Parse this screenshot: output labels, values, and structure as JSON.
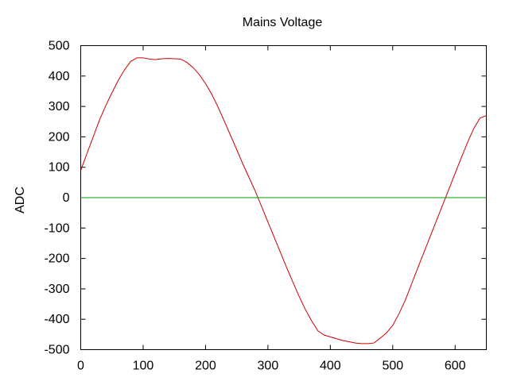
{
  "chart_data": {
    "type": "line",
    "title": "Mains Voltage",
    "xlabel": "",
    "ylabel": "ADC",
    "xlim": [
      0,
      650
    ],
    "ylim": [
      -500,
      500
    ],
    "x_ticks": [
      0,
      100,
      200,
      300,
      400,
      500,
      600
    ],
    "y_ticks": [
      500,
      400,
      300,
      200,
      100,
      0,
      -100,
      -200,
      -300,
      -400,
      -500
    ],
    "grid": false,
    "legend": "none",
    "series": [
      {
        "color": "#cc0000",
        "x": [
          0,
          10,
          20,
          30,
          40,
          50,
          60,
          70,
          80,
          90,
          100,
          110,
          120,
          130,
          140,
          150,
          160,
          170,
          180,
          190,
          200,
          210,
          220,
          230,
          240,
          250,
          260,
          270,
          280,
          290,
          300,
          310,
          320,
          330,
          340,
          350,
          360,
          370,
          380,
          390,
          400,
          410,
          420,
          430,
          440,
          450,
          460,
          470,
          480,
          490,
          500,
          510,
          520,
          530,
          540,
          550,
          560,
          570,
          580,
          590,
          600,
          610,
          620,
          630,
          640,
          650
        ],
        "y": [
          90,
          145,
          200,
          255,
          302,
          345,
          385,
          420,
          448,
          460,
          460,
          456,
          454,
          457,
          458,
          457,
          456,
          445,
          428,
          405,
          375,
          340,
          298,
          252,
          205,
          158,
          110,
          65,
          20,
          -30,
          -80,
          -130,
          -180,
          -230,
          -278,
          -325,
          -368,
          -405,
          -438,
          -452,
          -458,
          -464,
          -470,
          -474,
          -478,
          -480,
          -480,
          -478,
          -462,
          -445,
          -420,
          -382,
          -338,
          -285,
          -232,
          -180,
          -128,
          -76,
          -24,
          28,
          80,
          132,
          182,
          228,
          262,
          270
        ]
      },
      {
        "color": "#00a000",
        "x": [
          0,
          650
        ],
        "y": [
          0,
          0
        ]
      }
    ]
  }
}
